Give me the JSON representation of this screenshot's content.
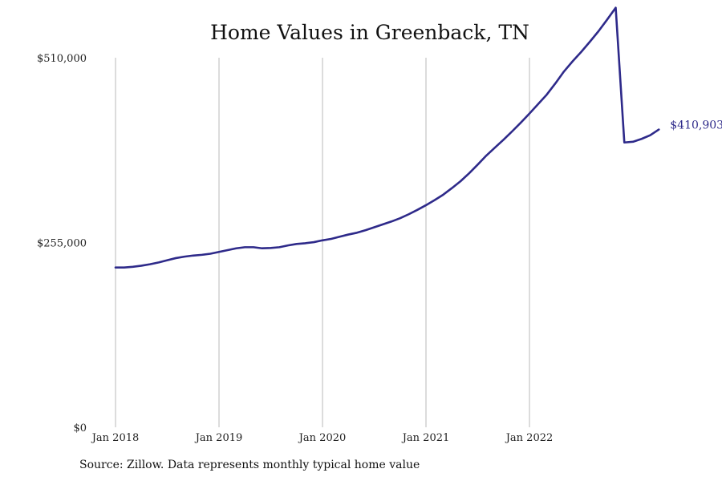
{
  "chart_data": {
    "type": "line",
    "title": "Home Values in Greenback, TN",
    "xlabel": "",
    "ylabel": "",
    "x_start": "2018-01",
    "x_ticks": [
      "Jan 2018",
      "Jan 2019",
      "Jan 2020",
      "Jan 2021",
      "Jan 2022"
    ],
    "y_ticks": [
      "$0",
      "$255,000",
      "$510,000"
    ],
    "ylim": [
      0,
      510000
    ],
    "grid": "vertical",
    "line_color": "#2e2a8a",
    "end_label": "$410,903",
    "series": [
      {
        "values": [
          220500,
          220500,
          221500,
          223000,
          225000,
          227500,
          230500,
          233500,
          235500,
          237000,
          238000,
          239500,
          242000,
          244500,
          247000,
          248500,
          248500,
          247000,
          247500,
          248500,
          251000,
          253000,
          254000,
          255500,
          258000,
          260000,
          263000,
          266000,
          268500,
          272000,
          276000,
          280000,
          284000,
          288500,
          294000,
          300000,
          306500,
          313500,
          321000,
          330000,
          339500,
          350500,
          362500,
          375000,
          386000,
          397000,
          408500,
          420500,
          433000,
          446000,
          459000,
          474500,
          491000,
          505000,
          518000,
          532000,
          546500,
          562500,
          579000,
          393000,
          394000,
          398000,
          403000,
          410903
        ]
      }
    ]
  },
  "source_note": "Source: Zillow. Data represents monthly typical home value"
}
